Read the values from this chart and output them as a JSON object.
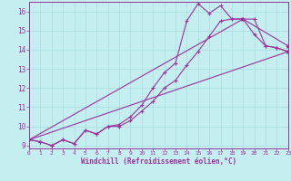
{
  "xlabel": "Windchill (Refroidissement éolien,°C)",
  "bg_color": "#c5eef0",
  "grid_color": "#a8dde0",
  "line_color": "#993399",
  "spine_color": "#993399",
  "xmin": 0,
  "xmax": 23,
  "ymin": 9,
  "ymax": 16.5,
  "yticks": [
    9,
    10,
    11,
    12,
    13,
    14,
    15,
    16
  ],
  "xticks": [
    0,
    1,
    2,
    3,
    4,
    5,
    6,
    7,
    8,
    9,
    10,
    11,
    12,
    13,
    14,
    15,
    16,
    17,
    18,
    19,
    20,
    21,
    22,
    23
  ],
  "lines": [
    {
      "x": [
        0,
        1,
        2,
        3,
        4,
        5,
        6,
        7,
        8,
        9,
        10,
        11,
        12,
        13,
        14,
        15,
        16,
        17,
        18,
        19,
        20,
        21,
        22,
        23
      ],
      "y": [
        9.3,
        9.2,
        9.0,
        9.3,
        9.1,
        9.8,
        9.6,
        10.0,
        10.1,
        10.5,
        11.1,
        12.0,
        12.8,
        13.3,
        15.5,
        16.4,
        15.9,
        16.3,
        15.6,
        15.6,
        14.8,
        14.2,
        14.1,
        13.9
      ],
      "marker": "+"
    },
    {
      "x": [
        0,
        1,
        2,
        3,
        4,
        5,
        6,
        7,
        8,
        9,
        10,
        11,
        12,
        13,
        14,
        15,
        16,
        17,
        18,
        19,
        20,
        21,
        22,
        23
      ],
      "y": [
        9.3,
        9.2,
        9.0,
        9.3,
        9.1,
        9.8,
        9.6,
        10.0,
        10.0,
        10.3,
        10.8,
        11.3,
        12.0,
        12.4,
        13.2,
        13.9,
        14.7,
        15.5,
        15.6,
        15.6,
        15.6,
        14.2,
        14.1,
        13.9
      ],
      "marker": "+"
    },
    {
      "x": [
        0,
        19,
        23
      ],
      "y": [
        9.3,
        15.6,
        14.2
      ],
      "marker": ">"
    },
    {
      "x": [
        0,
        23
      ],
      "y": [
        9.3,
        13.9
      ],
      "marker": ">"
    }
  ]
}
